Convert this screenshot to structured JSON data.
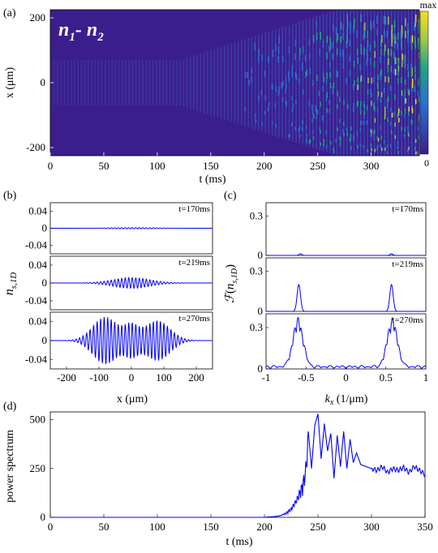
{
  "figure": {
    "panel_labels": [
      "(a)",
      "(b)",
      "(c)",
      "(d)"
    ],
    "colors": {
      "line": "#0000ff",
      "heat_low": "#3b1e8c",
      "heat_mid": "#1fa38a",
      "heat_high": "#f5e21c"
    }
  },
  "chart_data": [
    {
      "id": "a",
      "type": "heatmap",
      "title": "n1 - n2",
      "title_main": "n",
      "title_sub1": "1",
      "title_dash": "- n",
      "title_sub2": "2",
      "xlabel": "t (ms)",
      "ylabel": "x (μm)",
      "xlim": [
        0,
        345
      ],
      "ylim": [
        -225,
        225
      ],
      "xticks": [
        0,
        50,
        100,
        150,
        200,
        250,
        300
      ],
      "yticks": [
        -200,
        0,
        200
      ],
      "colorbar": {
        "top": "max",
        "bottom": "0"
      }
    },
    {
      "id": "b",
      "type": "line",
      "ylabel": "n_s,1D",
      "xlabel": "x (μm)",
      "xlim": [
        -250,
        250
      ],
      "xticks": [
        -200,
        -100,
        0,
        100,
        200
      ],
      "subplots": [
        {
          "time": "t=170ms",
          "ylim": [
            -0.06,
            0.06
          ],
          "yticks": [
            -0.04,
            0,
            0.04
          ],
          "amplitude": 0.0015
        },
        {
          "time": "t=219ms",
          "ylim": [
            -0.06,
            0.06
          ],
          "yticks": [
            -0.04,
            0,
            0.04
          ],
          "amplitude": 0.012
        },
        {
          "time": "t=270ms",
          "ylim": [
            -0.06,
            0.06
          ],
          "yticks": [
            -0.04,
            0,
            0.04
          ],
          "amplitude": 0.05
        }
      ]
    },
    {
      "id": "c",
      "type": "line",
      "ylabel": "F(n_s,1D)",
      "xlabel": "k_x (1/μm)",
      "xlim": [
        -1,
        1
      ],
      "xticks": [
        -1,
        -0.5,
        0,
        0.5,
        1
      ],
      "subplots": [
        {
          "time": "t=170ms",
          "ylim": [
            0,
            0.4
          ],
          "yticks": [
            0,
            0.3
          ],
          "peaks": [
            {
              "k": -0.57,
              "h": 0.012
            },
            {
              "k": 0.57,
              "h": 0.012
            }
          ]
        },
        {
          "time": "t=219ms",
          "ylim": [
            0,
            0.4
          ],
          "yticks": [
            0,
            0.3
          ],
          "peaks": [
            {
              "k": -0.59,
              "h": 0.2
            },
            {
              "k": 0.57,
              "h": 0.2
            }
          ]
        },
        {
          "time": "t=270ms",
          "ylim": [
            0,
            0.4
          ],
          "yticks": [
            0,
            0.3
          ],
          "peaks": [
            {
              "k": -0.6,
              "h": 0.35
            },
            {
              "k": 0.58,
              "h": 0.35
            }
          ]
        }
      ]
    },
    {
      "id": "d",
      "type": "line",
      "xlabel": "t (ms)",
      "ylabel": "power spectrum",
      "xlim": [
        0,
        350
      ],
      "ylim": [
        0,
        540
      ],
      "xticks": [
        0,
        50,
        100,
        150,
        200,
        250,
        300,
        350
      ],
      "yticks": [
        0,
        250,
        500
      ],
      "series": [
        {
          "x": [
            0,
            100,
            200,
            210,
            215,
            220,
            225,
            230,
            235,
            238,
            241,
            244,
            247,
            250,
            253,
            256,
            259,
            262,
            265,
            268,
            271,
            274,
            277,
            280,
            283,
            286,
            290,
            295,
            300,
            305,
            310,
            315,
            320,
            325,
            330,
            335,
            340,
            345,
            350
          ],
          "y": [
            0,
            0,
            0,
            5,
            10,
            25,
            50,
            100,
            180,
            250,
            440,
            250,
            470,
            530,
            300,
            480,
            340,
            430,
            200,
            420,
            260,
            440,
            250,
            400,
            280,
            330,
            270,
            260,
            250,
            240,
            260,
            230,
            250,
            240,
            255,
            230,
            260,
            240,
            220
          ]
        }
      ]
    }
  ]
}
